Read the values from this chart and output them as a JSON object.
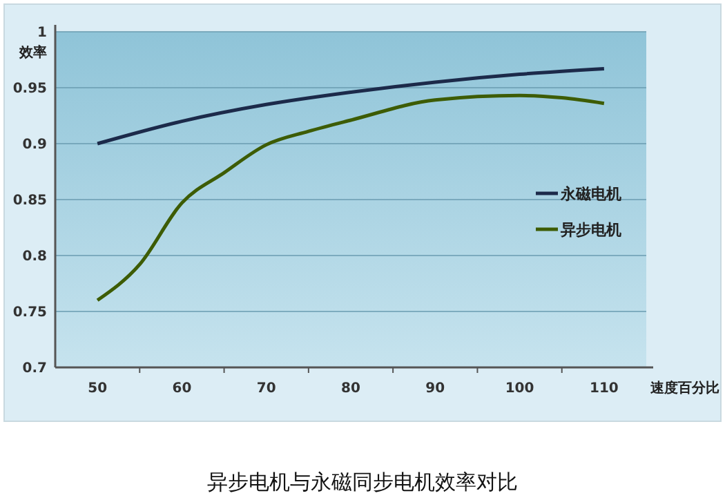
{
  "chart_data": {
    "type": "line",
    "title": "异步电机与永磁同步电机效率对比",
    "xlabel": "速度百分比",
    "ylabel": "效率",
    "xlim": [
      45,
      115
    ],
    "xticks": [
      50,
      {
        "value": 55,
        "label": null
      },
      60,
      {
        "value": 65,
        "label": null
      },
      70,
      {
        "value": 75,
        "label": null
      },
      80,
      {
        "value": 85,
        "label": null
      },
      90,
      {
        "value": 95,
        "label": null
      },
      100,
      {
        "value": 105,
        "label": null
      },
      110
    ],
    "ylim": [
      0.7,
      1
    ],
    "yticks": [
      0.7,
      0.75,
      0.8,
      0.85,
      0.9,
      0.95,
      1
    ],
    "grid": "y",
    "legend": "right",
    "line_style": "solid",
    "marker": "none",
    "series": [
      {
        "name": "永磁电机",
        "color": "#1c2a4a",
        "x": [
          50,
          60,
          70,
          80,
          90,
          100,
          110
        ],
        "values": [
          0.9,
          0.92,
          0.935,
          0.946,
          0.955,
          0.962,
          0.967
        ]
      },
      {
        "name": "异步电机",
        "color": "#3d5c05",
        "x": [
          50,
          55,
          60,
          65,
          70,
          75,
          80,
          90,
          100,
          105,
          110
        ],
        "values": [
          0.76,
          0.792,
          0.847,
          0.874,
          0.899,
          0.911,
          0.921,
          0.939,
          0.943,
          0.941,
          0.936
        ]
      }
    ]
  }
}
